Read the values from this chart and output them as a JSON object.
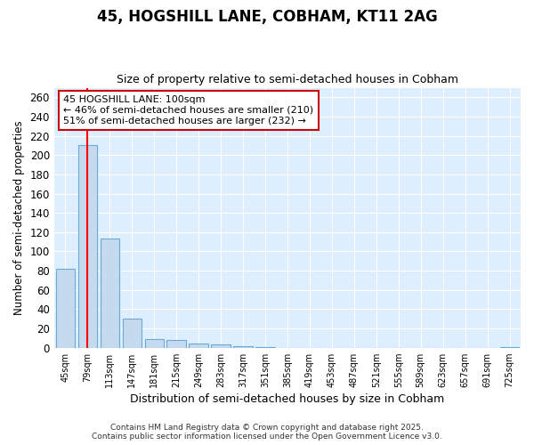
{
  "title": "45, HOGSHILL LANE, COBHAM, KT11 2AG",
  "subtitle": "Size of property relative to semi-detached houses in Cobham",
  "xlabel": "Distribution of semi-detached houses by size in Cobham",
  "ylabel": "Number of semi-detached properties",
  "bin_labels": [
    "45sqm",
    "79sqm",
    "113sqm",
    "147sqm",
    "181sqm",
    "215sqm",
    "249sqm",
    "283sqm",
    "317sqm",
    "351sqm",
    "385sqm",
    "419sqm",
    "453sqm",
    "487sqm",
    "521sqm",
    "555sqm",
    "589sqm",
    "623sqm",
    "657sqm",
    "691sqm",
    "725sqm"
  ],
  "bar_values": [
    82,
    210,
    113,
    30,
    9,
    8,
    4,
    3,
    2,
    1,
    0,
    0,
    0,
    0,
    0,
    0,
    0,
    0,
    0,
    0,
    1
  ],
  "bar_color": "#c5d9ef",
  "bar_edge_color": "#6aaad4",
  "bg_color": "#ddeeff",
  "grid_color": "#ffffff",
  "red_line_x": 1.0,
  "annotation_text": "45 HOGSHILL LANE: 100sqm\n← 46% of semi-detached houses are smaller (210)\n51% of semi-detached houses are larger (232) →",
  "annotation_box_color": "#cc0000",
  "ylim": [
    0,
    270
  ],
  "yticks": [
    0,
    20,
    40,
    60,
    80,
    100,
    120,
    140,
    160,
    180,
    200,
    220,
    240,
    260
  ],
  "footer_line1": "Contains HM Land Registry data © Crown copyright and database right 2025.",
  "footer_line2": "Contains public sector information licensed under the Open Government Licence v3.0."
}
